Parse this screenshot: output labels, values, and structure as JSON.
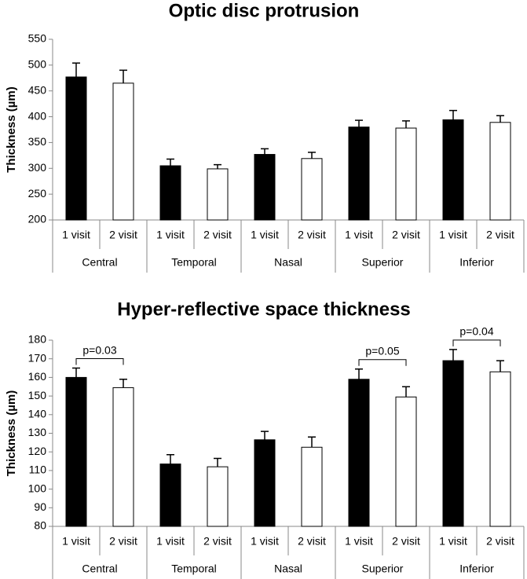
{
  "chart_data": [
    {
      "type": "bar",
      "title": "Optic disc protrusion",
      "y_label": "Thickness (µm)",
      "categories": [
        "Central",
        "Temporal",
        "Nasal",
        "Superior",
        "Inferior"
      ],
      "series": [
        {
          "name": "1 visit",
          "color": "#000000",
          "values": [
            477,
            305,
            327,
            380,
            394
          ],
          "errors": [
            27,
            13,
            11,
            13,
            18
          ]
        },
        {
          "name": "2 visit",
          "color": "#ffffff",
          "values": [
            465,
            299,
            319,
            378,
            389
          ],
          "errors": [
            25,
            8,
            12,
            14,
            13
          ]
        }
      ],
      "ylim": [
        200,
        550
      ],
      "yticks": [
        200,
        250,
        300,
        350,
        400,
        450,
        500,
        550
      ]
    },
    {
      "type": "bar",
      "title": "Hyper-reflective space thickness",
      "y_label": "Thickness (µm)",
      "categories": [
        "Central",
        "Temporal",
        "Nasal",
        "Superior",
        "Inferior"
      ],
      "series": [
        {
          "name": "1 visit",
          "color": "#000000",
          "values": [
            160,
            113.5,
            126.5,
            159,
            169
          ],
          "errors": [
            5,
            5,
            4.5,
            5.5,
            6
          ]
        },
        {
          "name": "2 visit",
          "color": "#ffffff",
          "values": [
            154.5,
            112,
            122.5,
            149.5,
            163
          ],
          "errors": [
            4.5,
            4.5,
            5.5,
            5.5,
            6
          ]
        }
      ],
      "ylim": [
        80,
        180
      ],
      "yticks": [
        80,
        90,
        100,
        110,
        120,
        130,
        140,
        150,
        160,
        170,
        180
      ],
      "annotations": [
        {
          "text": "p=0.03",
          "category": "Central"
        },
        {
          "text": "p=0.05",
          "category": "Superior"
        },
        {
          "text": "p=0.04",
          "category": "Inferior"
        }
      ]
    }
  ]
}
